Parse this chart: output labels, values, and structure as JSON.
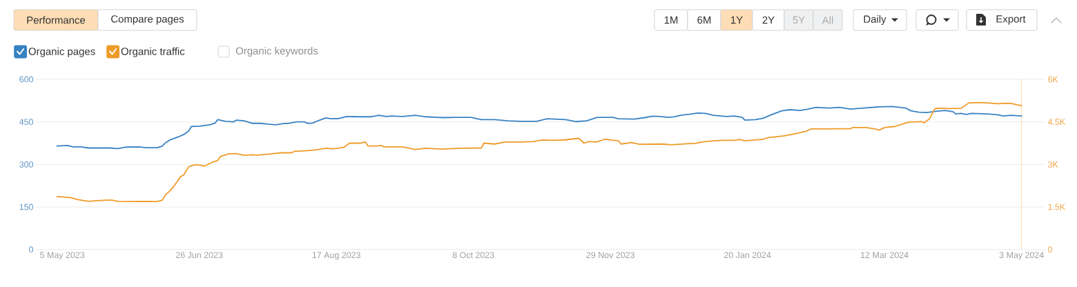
{
  "chart_data": {
    "type": "line",
    "annotations": [
      "Performance",
      "Compare pages",
      "1M",
      "6M",
      "1Y",
      "2Y",
      "5Y",
      "All",
      "Daily",
      "Export",
      "Organic keywords"
    ],
    "xlim": [
      "2023-04-25",
      "2024-05-12"
    ],
    "xticks": [
      {
        "value": "2023-05-05",
        "label": "5 May 2023"
      },
      {
        "value": "2023-06-26",
        "label": "26 Jun 2023"
      },
      {
        "value": "2023-08-17",
        "label": "17 Aug 2023"
      },
      {
        "value": "2023-10-08",
        "label": "8 Oct 2023"
      },
      {
        "value": "2023-11-29",
        "label": "29 Nov 2023"
      },
      {
        "value": "2024-01-20",
        "label": "20 Jan 2024"
      },
      {
        "value": "2024-03-12",
        "label": "12 Mar 2024"
      },
      {
        "value": "2024-05-03",
        "label": "3 May 2024"
      }
    ],
    "ylim": [
      0,
      600
    ],
    "yticks": [
      0,
      150,
      300,
      450,
      600
    ],
    "y2lim": [
      0,
      6000
    ],
    "y2ticks": [
      0,
      {
        "value": 1500,
        "label": "1.5K"
      },
      {
        "value": 3000,
        "label": "3K"
      },
      {
        "value": 4500,
        "label": "4.5K"
      },
      {
        "value": 6000,
        "label": "6K"
      }
    ],
    "grid": "y",
    "legend": "top left",
    "ref_lines": [
      {
        "axis": "x",
        "value": "2024-05-03",
        "color": "#f8d9ab"
      }
    ],
    "series": [
      {
        "name": "Organic pages",
        "color": "#3782c3",
        "x": [
          "2023-05-03",
          "2023-05-07",
          "2023-05-09",
          "2023-05-12",
          "2023-05-15",
          "2023-05-19",
          "2023-05-23",
          "2023-05-26",
          "2023-05-29",
          "2023-06-03",
          "2023-06-06",
          "2023-06-10",
          "2023-06-12",
          "2023-06-13",
          "2023-06-15",
          "2023-06-18",
          "2023-06-20",
          "2023-06-22",
          "2023-06-23",
          "2023-06-26",
          "2023-06-30",
          "2023-07-02",
          "2023-07-03",
          "2023-07-06",
          "2023-07-09",
          "2023-07-10",
          "2023-07-13",
          "2023-07-16",
          "2023-07-19",
          "2023-07-22",
          "2023-07-25",
          "2023-07-28",
          "2023-07-30",
          "2023-08-02",
          "2023-08-05",
          "2023-08-06",
          "2023-08-08",
          "2023-08-10",
          "2023-08-13",
          "2023-08-15",
          "2023-08-18",
          "2023-08-21",
          "2023-08-26",
          "2023-08-30",
          "2023-09-02",
          "2023-09-05",
          "2023-09-07",
          "2023-09-11",
          "2023-09-16",
          "2023-09-20",
          "2023-09-24",
          "2023-09-27",
          "2023-10-01",
          "2023-10-07",
          "2023-10-11",
          "2023-10-16",
          "2023-10-21",
          "2023-10-26",
          "2023-11-01",
          "2023-11-05",
          "2023-11-12",
          "2023-11-16",
          "2023-11-20",
          "2023-11-24",
          "2023-11-30",
          "2023-12-02",
          "2023-12-08",
          "2023-12-12",
          "2023-12-15",
          "2023-12-18",
          "2023-12-21",
          "2023-12-23",
          "2023-12-26",
          "2023-12-29",
          "2024-01-01",
          "2024-01-04",
          "2024-01-07",
          "2024-01-12",
          "2024-01-15",
          "2024-01-18",
          "2024-01-19",
          "2024-01-23",
          "2024-01-26",
          "2024-01-29",
          "2024-02-02",
          "2024-02-05",
          "2024-02-09",
          "2024-02-12",
          "2024-02-15",
          "2024-02-20",
          "2024-02-24",
          "2024-02-28",
          "2024-03-04",
          "2024-03-10",
          "2024-03-15",
          "2024-03-20",
          "2024-03-22",
          "2024-03-25",
          "2024-03-28",
          "2024-04-01",
          "2024-04-04",
          "2024-04-07",
          "2024-04-08",
          "2024-04-10",
          "2024-04-12",
          "2024-04-14",
          "2024-04-20",
          "2024-04-24",
          "2024-04-26",
          "2024-04-29",
          "2024-05-03"
        ],
        "values": [
          365,
          367,
          362,
          362,
          358,
          358,
          358,
          356,
          361,
          362,
          359,
          359,
          365,
          375,
          387,
          397,
          405,
          418,
          434,
          435,
          440,
          446,
          458,
          452,
          450,
          456,
          454,
          445,
          445,
          442,
          440,
          444,
          445,
          450,
          450,
          445,
          446,
          454,
          464,
          461,
          462,
          469,
          468,
          468,
          473,
          469,
          471,
          469,
          473,
          468,
          466,
          465,
          466,
          466,
          458,
          458,
          454,
          452,
          452,
          461,
          458,
          451,
          454,
          466,
          466,
          461,
          460,
          465,
          470,
          469,
          466,
          468,
          474,
          477,
          481,
          480,
          473,
          469,
          471,
          466,
          456,
          458,
          463,
          475,
          489,
          493,
          490,
          495,
          501,
          499,
          501,
          495,
          499,
          503,
          504,
          499,
          489,
          484,
          483,
          488,
          490,
          486,
          478,
          480,
          476,
          480,
          478,
          475,
          471,
          473,
          471
        ]
      },
      {
        "name": "Organic traffic",
        "color": "#ef9b28",
        "axis": "y2",
        "x": [
          "2023-05-03",
          "2023-05-08",
          "2023-05-11",
          "2023-05-15",
          "2023-05-18",
          "2023-05-22",
          "2023-05-24",
          "2023-05-26",
          "2023-05-30",
          "2023-06-05",
          "2023-06-10",
          "2023-06-12",
          "2023-06-13",
          "2023-06-15",
          "2023-06-16",
          "2023-06-19",
          "2023-06-20",
          "2023-06-22",
          "2023-06-24",
          "2023-06-26",
          "2023-06-28",
          "2023-07-01",
          "2023-07-03",
          "2023-07-04",
          "2023-07-07",
          "2023-07-10",
          "2023-07-13",
          "2023-07-16",
          "2023-07-18",
          "2023-07-23",
          "2023-07-27",
          "2023-07-31",
          "2023-08-01",
          "2023-08-05",
          "2023-08-09",
          "2023-08-13",
          "2023-08-16",
          "2023-08-20",
          "2023-08-22",
          "2023-08-26",
          "2023-08-28",
          "2023-08-29",
          "2023-09-01",
          "2023-09-03",
          "2023-09-04",
          "2023-09-11",
          "2023-09-16",
          "2023-09-20",
          "2023-09-26",
          "2023-10-03",
          "2023-10-11",
          "2023-10-12",
          "2023-10-16",
          "2023-10-20",
          "2023-10-26",
          "2023-10-31",
          "2023-11-03",
          "2023-11-07",
          "2023-11-11",
          "2023-11-17",
          "2023-11-19",
          "2023-11-21",
          "2023-11-23",
          "2023-11-24",
          "2023-11-27",
          "2023-11-30",
          "2023-12-02",
          "2023-12-03",
          "2023-12-07",
          "2023-12-10",
          "2023-12-19",
          "2023-12-22",
          "2023-12-28",
          "2023-12-31",
          "2024-01-04",
          "2024-01-10",
          "2024-01-15",
          "2024-01-17",
          "2024-01-19",
          "2024-01-25",
          "2024-01-26",
          "2024-01-28",
          "2024-02-03",
          "2024-02-07",
          "2024-02-11",
          "2024-02-13",
          "2024-02-18",
          "2024-02-24",
          "2024-02-28",
          "2024-02-29",
          "2024-03-05",
          "2024-03-08",
          "2024-03-10",
          "2024-03-12",
          "2024-03-16",
          "2024-03-19",
          "2024-03-21",
          "2024-03-24",
          "2024-03-26",
          "2024-03-27",
          "2024-03-29",
          "2024-03-31",
          "2024-04-01",
          "2024-04-06",
          "2024-04-10",
          "2024-04-11",
          "2024-04-13",
          "2024-04-17",
          "2024-04-20",
          "2024-04-24",
          "2024-04-27",
          "2024-04-29",
          "2024-05-01",
          "2024-05-03"
        ],
        "values": [
          1870,
          1830,
          1760,
          1700,
          1720,
          1740,
          1740,
          1700,
          1690,
          1700,
          1690,
          1740,
          1910,
          2080,
          2190,
          2580,
          2620,
          2920,
          2980,
          2980,
          2940,
          3080,
          3140,
          3280,
          3370,
          3380,
          3320,
          3340,
          3330,
          3370,
          3410,
          3410,
          3460,
          3480,
          3510,
          3570,
          3550,
          3610,
          3750,
          3750,
          3790,
          3650,
          3650,
          3670,
          3620,
          3620,
          3530,
          3570,
          3540,
          3570,
          3580,
          3750,
          3720,
          3790,
          3790,
          3810,
          3860,
          3850,
          3860,
          3920,
          3750,
          3810,
          3790,
          3800,
          3890,
          3850,
          3840,
          3720,
          3770,
          3710,
          3720,
          3690,
          3730,
          3740,
          3810,
          3850,
          3850,
          3880,
          3830,
          3880,
          3890,
          3950,
          4010,
          4080,
          4160,
          4250,
          4250,
          4260,
          4260,
          4300,
          4300,
          4260,
          4210,
          4300,
          4340,
          4430,
          4490,
          4500,
          4510,
          4470,
          4600,
          4950,
          4980,
          4970,
          4980,
          5040,
          5170,
          5180,
          5170,
          5140,
          5160,
          5150,
          5110,
          5070
        ]
      }
    ]
  }
}
